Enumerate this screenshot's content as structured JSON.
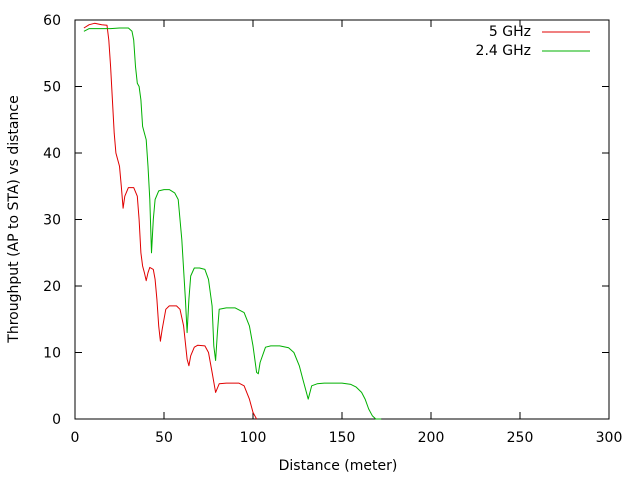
{
  "chart_data": {
    "type": "line",
    "xlabel": "Distance (meter)",
    "ylabel": "Throughput (AP to STA) vs distance",
    "xlim": [
      0,
      300
    ],
    "ylim": [
      0,
      60
    ],
    "xticks": [
      0,
      50,
      100,
      150,
      200,
      250,
      300
    ],
    "yticks": [
      0,
      10,
      20,
      30,
      40,
      50,
      60
    ],
    "grid": false,
    "legend_position": "top-right",
    "series": [
      {
        "name": "5 GHz",
        "color": "#e00000",
        "points": [
          [
            5,
            58.8
          ],
          [
            8,
            59.3
          ],
          [
            11,
            59.5
          ],
          [
            15,
            59.3
          ],
          [
            18,
            59.2
          ],
          [
            19,
            57.0
          ],
          [
            20,
            53.0
          ],
          [
            21,
            48.0
          ],
          [
            22,
            43.0
          ],
          [
            23,
            40.0
          ],
          [
            25,
            38.0
          ],
          [
            26,
            35.0
          ],
          [
            27,
            31.7
          ],
          [
            28,
            33.5
          ],
          [
            30,
            34.8
          ],
          [
            33,
            34.8
          ],
          [
            35,
            33.5
          ],
          [
            36,
            30.0
          ],
          [
            37,
            25.0
          ],
          [
            38,
            23.0
          ],
          [
            39,
            22.0
          ],
          [
            40,
            20.8
          ],
          [
            41,
            22.0
          ],
          [
            42,
            22.8
          ],
          [
            44,
            22.5
          ],
          [
            45,
            21.0
          ],
          [
            46,
            18.0
          ],
          [
            47,
            14.0
          ],
          [
            48,
            11.7
          ],
          [
            49,
            13.5
          ],
          [
            51,
            16.5
          ],
          [
            53,
            17.0
          ],
          [
            57,
            17.0
          ],
          [
            59,
            16.5
          ],
          [
            61,
            14.0
          ],
          [
            63,
            9.0
          ],
          [
            64,
            8.0
          ],
          [
            65,
            9.5
          ],
          [
            67,
            10.8
          ],
          [
            69,
            11.1
          ],
          [
            73,
            11.0
          ],
          [
            75,
            10.0
          ],
          [
            77,
            7.0
          ],
          [
            79,
            4.0
          ],
          [
            81,
            5.3
          ],
          [
            85,
            5.4
          ],
          [
            92,
            5.4
          ],
          [
            95,
            5.0
          ],
          [
            98,
            3.0
          ],
          [
            100,
            1.0
          ],
          [
            102,
            0.0
          ]
        ]
      },
      {
        "name": "2.4 GHz",
        "color": "#00b000",
        "points": [
          [
            5,
            58.3
          ],
          [
            8,
            58.7
          ],
          [
            20,
            58.7
          ],
          [
            25,
            58.8
          ],
          [
            30,
            58.8
          ],
          [
            32,
            58.3
          ],
          [
            33,
            57.0
          ],
          [
            34,
            53.0
          ],
          [
            35,
            50.5
          ],
          [
            36,
            50.0
          ],
          [
            37,
            48.0
          ],
          [
            38,
            44.0
          ],
          [
            39,
            43.0
          ],
          [
            40,
            42.0
          ],
          [
            41,
            38.0
          ],
          [
            42,
            33.0
          ],
          [
            43,
            25.0
          ],
          [
            44,
            30.0
          ],
          [
            45,
            33.0
          ],
          [
            47,
            34.3
          ],
          [
            50,
            34.5
          ],
          [
            53,
            34.5
          ],
          [
            56,
            34.0
          ],
          [
            58,
            33.0
          ],
          [
            60,
            27.0
          ],
          [
            62,
            18.0
          ],
          [
            63,
            13.0
          ],
          [
            64,
            18.0
          ],
          [
            65,
            21.5
          ],
          [
            67,
            22.7
          ],
          [
            70,
            22.7
          ],
          [
            73,
            22.5
          ],
          [
            75,
            21.0
          ],
          [
            77,
            17.0
          ],
          [
            78,
            11.0
          ],
          [
            79,
            8.8
          ],
          [
            80,
            13.0
          ],
          [
            81,
            16.5
          ],
          [
            85,
            16.7
          ],
          [
            90,
            16.7
          ],
          [
            95,
            16.0
          ],
          [
            98,
            14.0
          ],
          [
            100,
            11.0
          ],
          [
            102,
            7.0
          ],
          [
            103,
            6.8
          ],
          [
            104,
            8.5
          ],
          [
            107,
            10.8
          ],
          [
            110,
            11.0
          ],
          [
            115,
            11.0
          ],
          [
            120,
            10.7
          ],
          [
            123,
            10.0
          ],
          [
            126,
            8.0
          ],
          [
            128,
            6.0
          ],
          [
            130,
            4.0
          ],
          [
            131,
            3.0
          ],
          [
            133,
            5.0
          ],
          [
            136,
            5.3
          ],
          [
            140,
            5.4
          ],
          [
            150,
            5.4
          ],
          [
            155,
            5.2
          ],
          [
            158,
            4.8
          ],
          [
            161,
            4.0
          ],
          [
            163,
            3.0
          ],
          [
            165,
            1.5
          ],
          [
            167,
            0.5
          ],
          [
            169,
            0.0
          ],
          [
            172,
            0.0
          ]
        ]
      }
    ]
  }
}
